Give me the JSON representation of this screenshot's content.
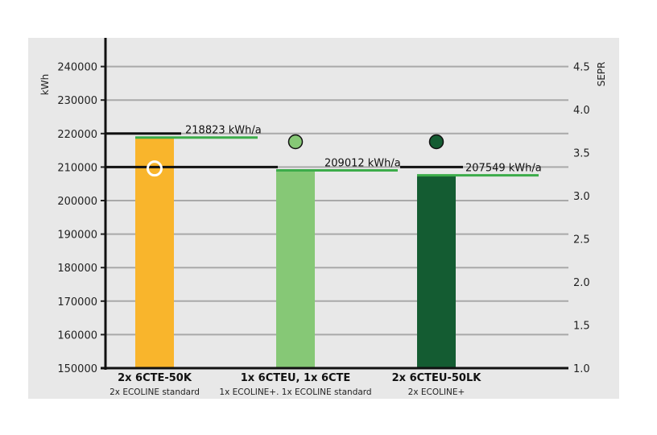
{
  "chart_data": {
    "type": "bar",
    "title": "",
    "ylabel": "kWh",
    "y2label": "SEPR",
    "ylim": [
      150000,
      245000
    ],
    "y_ticks": [
      "150000",
      "160000",
      "170000",
      "180000",
      "190000",
      "200000",
      "210000",
      "220000",
      "230000",
      "240000"
    ],
    "y2lim": [
      1.0,
      4.6
    ],
    "y2_ticks": [
      "1.0",
      "1.5",
      "2.0",
      "2.5",
      "3.0",
      "3.5",
      "4.0",
      "4.5"
    ],
    "categories": [
      "2x 6CTE-50K",
      "1x 6CTEU, 1x 6CTE",
      "2x 6CTEU-50LK"
    ],
    "subcategories": [
      "2x ECOLINE standard",
      "1x ECOLINE+. 1x ECOLINE standard",
      "2x ECOLINE+"
    ],
    "values": [
      218823,
      209012,
      207549
    ],
    "value_labels": [
      "218823 kWh/a",
      "209012 kWh/a",
      "207549 kWh/a"
    ],
    "sepr_values": [
      3.55,
      3.65,
      3.65
    ],
    "bar_colors": [
      "#f9b52c",
      "#86c876",
      "#145c32"
    ],
    "marker_colors": [
      "#f9b52c",
      "#86c876",
      "#145c32"
    ],
    "value_line_color": "#3cac4a",
    "reference_lines": [
      220000,
      210000
    ],
    "grid": true,
    "legend": "none"
  }
}
